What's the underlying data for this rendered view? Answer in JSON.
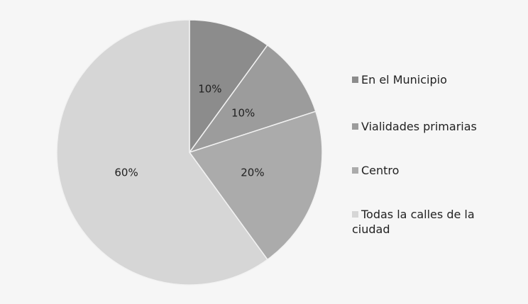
{
  "chart_data": {
    "type": "pie",
    "categories": [
      "En el Municipio",
      "Vialidades primarias",
      "Centro",
      "Todas la calles de la ciudad"
    ],
    "values": [
      10,
      10,
      20,
      60
    ],
    "value_labels": [
      "10%",
      "10%",
      "20%",
      "60%"
    ],
    "colors": [
      "#8c8c8c",
      "#9c9c9c",
      "#ababab",
      "#d6d6d6"
    ],
    "legend": "right"
  }
}
